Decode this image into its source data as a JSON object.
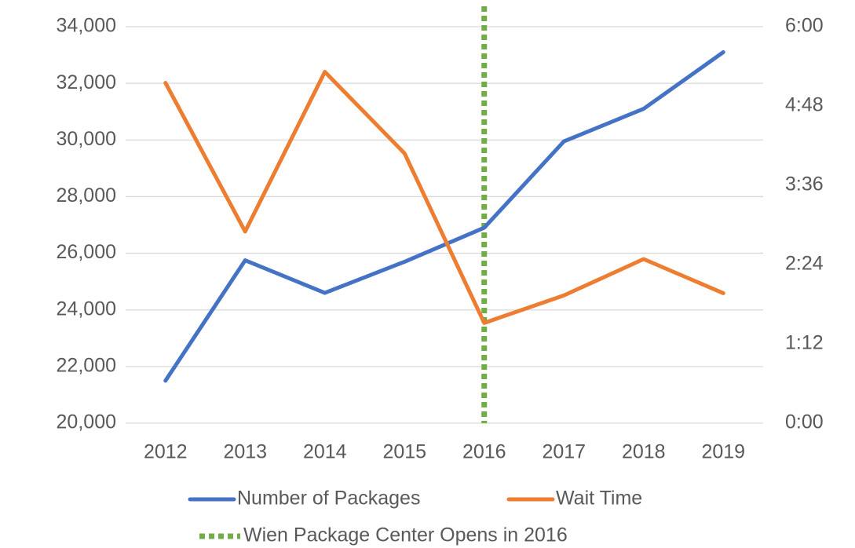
{
  "chart_data": {
    "type": "line",
    "categories": [
      "2012",
      "2013",
      "2014",
      "2015",
      "2016",
      "2017",
      "2018",
      "2019"
    ],
    "series": [
      {
        "name": "Number of Packages",
        "color": "#4472c4",
        "values": [
          21500,
          25750,
          24600,
          25700,
          26900,
          29950,
          31100,
          33100
        ]
      },
      {
        "name": "Wait Time",
        "color": "#ed7d31",
        "axis": "y2",
        "values": [
          309,
          174,
          319,
          245,
          91,
          116,
          149,
          118
        ]
      }
    ],
    "marker_line": {
      "name": "Wien Package Center Opens in 2016",
      "color": "#70ad47",
      "x": "2016"
    },
    "ylim": [
      20000,
      34000
    ],
    "yticks": [
      {
        "value": 20000,
        "label": "20,000"
      },
      {
        "value": 22000,
        "label": "22,000"
      },
      {
        "value": 24000,
        "label": "24,000"
      },
      {
        "value": 26000,
        "label": "26,000"
      },
      {
        "value": 28000,
        "label": "28,000"
      },
      {
        "value": 30000,
        "label": "30,000"
      },
      {
        "value": 32000,
        "label": "32,000"
      },
      {
        "value": 34000,
        "label": "34,000"
      }
    ],
    "y2lim": [
      0,
      360
    ],
    "y2ticks": [
      {
        "value": 0,
        "label": "0:00"
      },
      {
        "value": 72,
        "label": "1:12"
      },
      {
        "value": 144,
        "label": "2:24"
      },
      {
        "value": 216,
        "label": "3:36"
      },
      {
        "value": 288,
        "label": "4:48"
      },
      {
        "value": 360,
        "label": "6:00"
      }
    ],
    "grid": true,
    "legend": "bottom"
  }
}
